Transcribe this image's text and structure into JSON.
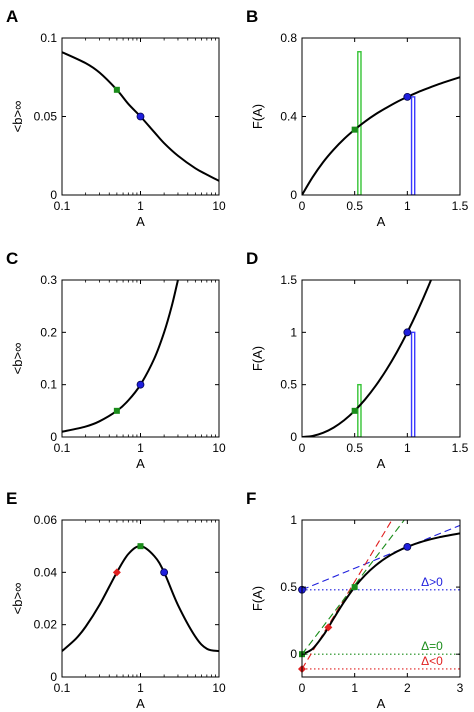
{
  "chart_data": [
    {
      "panel": "A",
      "type": "line",
      "xscale": "log",
      "xlabel": "A",
      "ylabel": "<b>∞",
      "xlim": [
        0.1,
        10
      ],
      "ylim": [
        0,
        0.1
      ],
      "xticks": [
        "0.1",
        "1",
        "10"
      ],
      "yticks": [
        "0",
        "0.05",
        "0.1"
      ],
      "series": [
        {
          "x": [
            0.1,
            0.2,
            0.3,
            0.5,
            0.7,
            1,
            1.5,
            2,
            3,
            5,
            7,
            10
          ],
          "y": [
            0.091,
            0.084,
            0.078,
            0.067,
            0.058,
            0.05,
            0.04,
            0.033,
            0.025,
            0.017,
            0.013,
            0.009
          ]
        }
      ],
      "markers": [
        {
          "x": 0.5,
          "y": 0.067,
          "color": "green",
          "shape": "square"
        },
        {
          "x": 1,
          "y": 0.05,
          "color": "blue",
          "shape": "circle"
        }
      ]
    },
    {
      "panel": "B",
      "type": "line",
      "xlabel": "A",
      "ylabel": "F(A)",
      "xlim": [
        0,
        1.5
      ],
      "ylim": [
        0,
        0.8
      ],
      "xticks": [
        "0",
        "0.5",
        "1",
        "1.5"
      ],
      "yticks": [
        "0",
        "0.4",
        "0.8"
      ],
      "series": [
        {
          "x": [
            0,
            0.1,
            0.2,
            0.3,
            0.4,
            0.5,
            0.6,
            0.7,
            0.8,
            0.9,
            1,
            1.1,
            1.2,
            1.3,
            1.4,
            1.5
          ],
          "y": [
            0,
            0.09,
            0.167,
            0.231,
            0.286,
            0.333,
            0.375,
            0.412,
            0.444,
            0.474,
            0.5,
            0.524,
            0.545,
            0.565,
            0.583,
            0.6
          ]
        }
      ],
      "markers": [
        {
          "x": 0.5,
          "y": 0.333,
          "color": "green",
          "shape": "square"
        },
        {
          "x": 1,
          "y": 0.5,
          "color": "blue",
          "shape": "circle"
        }
      ],
      "bars": [
        {
          "x0": 0.53,
          "x1": 0.56,
          "height": 0.73,
          "color": "green"
        },
        {
          "x0": 1.04,
          "x1": 1.07,
          "height": 0.5,
          "color": "blue"
        }
      ]
    },
    {
      "panel": "C",
      "type": "line",
      "xscale": "log",
      "xlabel": "A",
      "ylabel": "<b>∞",
      "xlim": [
        0.1,
        10
      ],
      "ylim": [
        0,
        0.3
      ],
      "xticks": [
        "0.1",
        "1",
        "10"
      ],
      "yticks": [
        "0",
        "0.1",
        "0.2",
        "0.3"
      ],
      "series": [
        {
          "x": [
            0.1,
            0.2,
            0.3,
            0.5,
            0.7,
            1,
            1.5,
            2,
            2.5,
            3
          ],
          "y": [
            0.01,
            0.02,
            0.03,
            0.05,
            0.07,
            0.1,
            0.15,
            0.2,
            0.25,
            0.3
          ]
        }
      ],
      "markers": [
        {
          "x": 0.5,
          "y": 0.05,
          "color": "green",
          "shape": "square"
        },
        {
          "x": 1,
          "y": 0.1,
          "color": "blue",
          "shape": "circle"
        }
      ]
    },
    {
      "panel": "D",
      "type": "line",
      "xlabel": "A",
      "ylabel": "F(A)",
      "xlim": [
        0,
        1.5
      ],
      "ylim": [
        0,
        1.5
      ],
      "xticks": [
        "0",
        "0.5",
        "1",
        "1.5"
      ],
      "yticks": [
        "0",
        "0.5",
        "1",
        "1.5"
      ],
      "series": [
        {
          "x": [
            0,
            0.1,
            0.2,
            0.3,
            0.4,
            0.5,
            0.6,
            0.7,
            0.8,
            0.9,
            1,
            1.1,
            1.2,
            1.3,
            1.4
          ],
          "y": [
            0,
            0.01,
            0.04,
            0.09,
            0.16,
            0.25,
            0.36,
            0.49,
            0.64,
            0.81,
            1,
            1.21,
            1.44,
            1.69,
            1.96
          ]
        }
      ],
      "markers": [
        {
          "x": 0.5,
          "y": 0.25,
          "color": "green",
          "shape": "square"
        },
        {
          "x": 1,
          "y": 1,
          "color": "blue",
          "shape": "circle"
        }
      ],
      "bars": [
        {
          "x0": 0.53,
          "x1": 0.56,
          "height": 0.5,
          "color": "green"
        },
        {
          "x0": 1.04,
          "x1": 1.07,
          "height": 1.0,
          "color": "blue"
        }
      ]
    },
    {
      "panel": "E",
      "type": "line",
      "xscale": "log",
      "xlabel": "A",
      "ylabel": "<b>∞",
      "xlim": [
        0.1,
        10
      ],
      "ylim": [
        0,
        0.06
      ],
      "xticks": [
        "0.1",
        "1",
        "10"
      ],
      "yticks": [
        "0",
        "0.02",
        "0.04",
        "0.06"
      ],
      "series": [
        {
          "x": [
            0.1,
            0.15,
            0.2,
            0.3,
            0.5,
            0.7,
            1,
            1.5,
            2,
            3,
            5,
            7,
            10
          ],
          "y": [
            0.0099,
            0.0146,
            0.0192,
            0.0275,
            0.04,
            0.047,
            0.05,
            0.0462,
            0.04,
            0.0275,
            0.0154,
            0.0108,
            0.0099
          ]
        }
      ],
      "markers": [
        {
          "x": 0.5,
          "y": 0.04,
          "color": "red",
          "shape": "diamond"
        },
        {
          "x": 1,
          "y": 0.05,
          "color": "green",
          "shape": "square"
        },
        {
          "x": 2,
          "y": 0.04,
          "color": "blue",
          "shape": "circle"
        }
      ]
    },
    {
      "panel": "F",
      "type": "line",
      "xlabel": "A",
      "ylabel": "F(A)",
      "xlim": [
        0,
        3
      ],
      "ylim": [
        -0.17,
        1
      ],
      "xticks": [
        "0",
        "1",
        "2",
        "3"
      ],
      "yticks": [
        "0",
        "0.5",
        "1"
      ],
      "series": [
        {
          "x": [
            0,
            0.2,
            0.4,
            0.5,
            0.6,
            0.8,
            1,
            1.2,
            1.4,
            1.6,
            1.8,
            2,
            2.3,
            2.6,
            3
          ],
          "y": [
            0,
            0.04,
            0.138,
            0.2,
            0.265,
            0.39,
            0.5,
            0.59,
            0.662,
            0.719,
            0.764,
            0.8,
            0.841,
            0.871,
            0.9
          ]
        }
      ],
      "markers": [
        {
          "x": 0,
          "y": 0,
          "color": "green",
          "shape": "square"
        },
        {
          "x": 0,
          "y": 0.48,
          "color": "blue",
          "shape": "circle"
        },
        {
          "x": 0,
          "y": -0.11,
          "color": "red",
          "shape": "diamond"
        },
        {
          "x": 0.5,
          "y": 0.2,
          "color": "red",
          "shape": "diamond"
        },
        {
          "x": 1,
          "y": 0.5,
          "color": "green",
          "shape": "square"
        },
        {
          "x": 2,
          "y": 0.8,
          "color": "blue",
          "shape": "circle"
        }
      ],
      "tangents": [
        {
          "x": [
            0,
            3
          ],
          "y": [
            0.48,
            0.96
          ],
          "color": "blue"
        },
        {
          "x": [
            0,
            2
          ],
          "y": [
            -0.11,
            1.19
          ],
          "color": "red"
        },
        {
          "x": [
            0,
            2
          ],
          "y": [
            0,
            1.03
          ],
          "color": "green"
        }
      ],
      "hlines": [
        {
          "y": 0.48,
          "color": "blue",
          "label": "Δ>0"
        },
        {
          "y": 0,
          "color": "green",
          "label": "Δ=0"
        },
        {
          "y": -0.11,
          "color": "red",
          "label": "Δ<0"
        }
      ]
    }
  ],
  "colors": {
    "green": "#1a8c1a",
    "blue": "#1f1fdd",
    "red": "#e01f1f",
    "bar_green": "#34c334",
    "bar_blue": "#3a3aff",
    "curve": "#000000"
  }
}
